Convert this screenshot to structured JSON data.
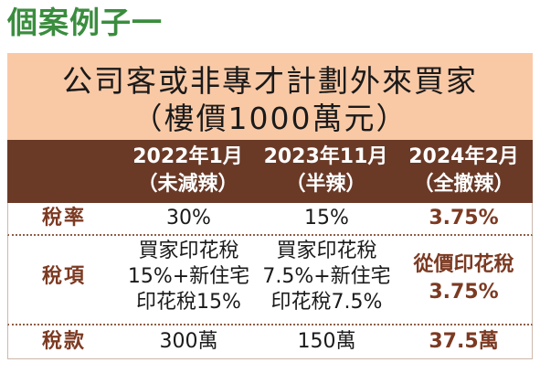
{
  "heading": "個案例子一",
  "colors": {
    "heading": "#3a8d3e",
    "title_bg": "#f9c9a6",
    "header_bg": "#6a3a27",
    "header_text": "#ffffff",
    "label": "#7c3a22",
    "highlight": "#7c3a22",
    "text": "#1a1a1a",
    "rule": "#8f5e45",
    "frame": "#cdb8aa"
  },
  "chart_data": {
    "type": "table",
    "title": "公司客或非專才計劃外來買家",
    "subtitle": "（樓價1000萬元）",
    "columns": [
      {
        "period": "2022年1月",
        "status": "（未減辣）"
      },
      {
        "period": "2023年11月",
        "status": "（半辣）"
      },
      {
        "period": "2024年2月",
        "status": "（全撤辣）"
      }
    ],
    "rows": [
      {
        "label": "稅率",
        "cells": [
          [
            "30%"
          ],
          [
            "15%"
          ],
          [
            "3.75%"
          ]
        ]
      },
      {
        "label": "稅項",
        "cells": [
          [
            "買家印花稅",
            "15%+新住宅",
            "印花稅15%"
          ],
          [
            "買家印花稅",
            "7.5%+新住宅",
            "印花稅7.5%"
          ],
          [
            "從價印花稅",
            "3.75%"
          ]
        ]
      },
      {
        "label": "稅款",
        "cells": [
          [
            "300萬"
          ],
          [
            "150萬"
          ],
          [
            "37.5萬"
          ]
        ]
      }
    ]
  }
}
